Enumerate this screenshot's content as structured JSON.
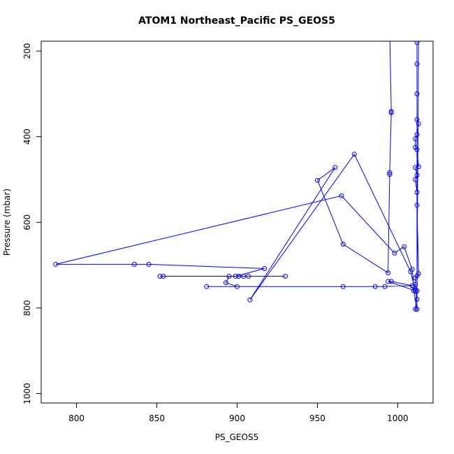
{
  "chart_data": {
    "type": "line",
    "title": "ATOM1 Northeast_Pacific PS_GEOS5",
    "xlabel": "PS_GEOS5",
    "ylabel": "Pressure (mbar)",
    "xlim": [
      778,
      1022
    ],
    "ylim": [
      1022,
      177
    ],
    "y_reversed": true,
    "grid": false,
    "x_ticks": [
      800,
      850,
      900,
      950,
      1000
    ],
    "y_ticks": [
      200,
      400,
      600,
      800,
      1000
    ],
    "series": [
      {
        "color": "#0000ff",
        "marker": "open-circle",
        "points": [
          [
            1012,
            150
          ],
          [
            1012,
            180
          ],
          [
            1012,
            230
          ],
          [
            1012,
            300
          ],
          [
            1012,
            360
          ],
          [
            1013,
            370
          ],
          [
            1012,
            395
          ],
          [
            1011,
            405
          ],
          [
            1011,
            425
          ],
          [
            1012,
            430
          ],
          [
            1013,
            470
          ],
          [
            1011,
            472
          ],
          [
            1012,
            490
          ],
          [
            1011,
            500
          ],
          [
            1012,
            530
          ],
          [
            1012,
            560
          ],
          [
            1013,
            720
          ],
          [
            1012,
            725
          ],
          [
            1011,
            730
          ],
          [
            1011,
            745
          ],
          [
            1012,
            760
          ],
          [
            1011,
            760
          ],
          [
            1012,
            780
          ],
          [
            1012,
            803
          ],
          [
            1011,
            803
          ],
          [
            1012,
            760
          ],
          [
            1013,
            150
          ],
          [
            1012,
            150
          ],
          [
            1012,
            803
          ],
          [
            1010,
            760
          ],
          [
            1010,
            750
          ],
          [
            1009,
            710
          ],
          [
            1004,
            657
          ],
          [
            998,
            672
          ],
          [
            965,
            538
          ],
          [
            787,
            698
          ],
          [
            836,
            698
          ],
          [
            845,
            698
          ],
          [
            917,
            708
          ],
          [
            899,
            726
          ],
          [
            930,
            726
          ],
          [
            852,
            726
          ],
          [
            854,
            726
          ],
          [
            901,
            726
          ],
          [
            904,
            726
          ],
          [
            907,
            726
          ],
          [
            895,
            726
          ],
          [
            893,
            741
          ],
          [
            900,
            750
          ],
          [
            881,
            750
          ],
          [
            966,
            750
          ],
          [
            986,
            750
          ],
          [
            992,
            750
          ],
          [
            1009,
            748
          ],
          [
            996,
            738
          ],
          [
            994,
            738
          ],
          [
            1011,
            760
          ],
          [
            1008,
            715
          ],
          [
            973,
            441
          ],
          [
            908,
            781
          ],
          [
            961,
            472
          ],
          [
            950,
            502
          ],
          [
            966,
            651
          ],
          [
            994,
            718
          ],
          [
            995,
            488
          ],
          [
            995,
            484
          ],
          [
            996,
            344
          ],
          [
            996,
            341
          ],
          [
            995,
            150
          ]
        ]
      }
    ]
  }
}
